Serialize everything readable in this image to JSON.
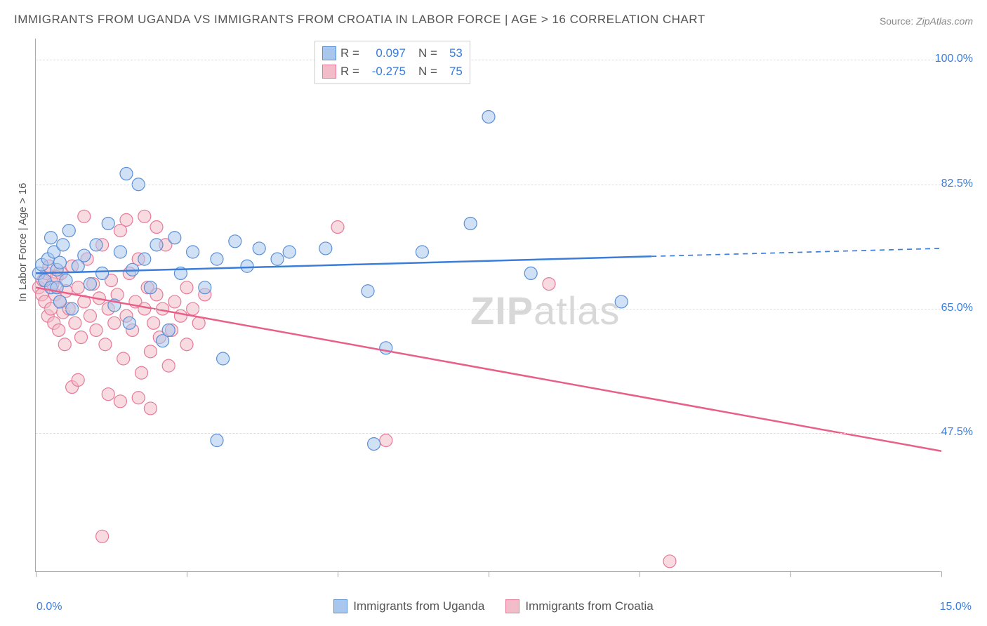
{
  "title": "IMMIGRANTS FROM UGANDA VS IMMIGRANTS FROM CROATIA IN LABOR FORCE | AGE > 16 CORRELATION CHART",
  "source_label": "Source:",
  "source_value": "ZipAtlas.com",
  "ylabel": "In Labor Force | Age > 16",
  "watermark": "ZIPatlas",
  "chart": {
    "type": "scatter-correlation",
    "background_color": "#ffffff",
    "grid_color": "#dddddd",
    "axis_color": "#aaaaaa",
    "tick_label_color": "#3b7dd8",
    "xlim": [
      0.0,
      15.0
    ],
    "ylim": [
      28.0,
      103.0
    ],
    "xtick_labels": {
      "left": "0.0%",
      "right": "15.0%"
    },
    "ytick_positions": [
      47.5,
      65.0,
      82.5,
      100.0
    ],
    "ytick_labels": [
      "47.5%",
      "65.0%",
      "82.5%",
      "100.0%"
    ],
    "xtick_positions": [
      0.0,
      2.5,
      5.0,
      7.5,
      10.0,
      12.5,
      15.0
    ],
    "marker_radius": 9,
    "marker_opacity": 0.55,
    "line_width": 2.5
  },
  "series": [
    {
      "name": "Immigrants from Uganda",
      "color_fill": "#a9c7ec",
      "color_stroke": "#5a8fd6",
      "line_color": "#3b7dd8",
      "R": "0.097",
      "N": "53",
      "regression": {
        "x1": 0.0,
        "y1": 70.0,
        "x2": 15.0,
        "y2": 73.5,
        "solid_until_x": 10.2
      },
      "points": [
        [
          0.05,
          70.0
        ],
        [
          0.1,
          71.2
        ],
        [
          0.15,
          69.0
        ],
        [
          0.2,
          72.0
        ],
        [
          0.25,
          68.0
        ],
        [
          0.3,
          73.0
        ],
        [
          0.25,
          75.0
        ],
        [
          0.35,
          70.5
        ],
        [
          0.4,
          66.0
        ],
        [
          0.45,
          74.0
        ],
        [
          0.5,
          69.0
        ],
        [
          0.55,
          76.0
        ],
        [
          0.6,
          65.0
        ],
        [
          0.7,
          71.0
        ],
        [
          0.8,
          72.5
        ],
        [
          0.9,
          68.5
        ],
        [
          1.0,
          74.0
        ],
        [
          1.1,
          70.0
        ],
        [
          1.2,
          77.0
        ],
        [
          1.3,
          65.5
        ],
        [
          1.4,
          73.0
        ],
        [
          1.5,
          84.0
        ],
        [
          1.55,
          63.0
        ],
        [
          1.6,
          70.5
        ],
        [
          1.7,
          82.5
        ],
        [
          1.8,
          72.0
        ],
        [
          1.9,
          68.0
        ],
        [
          2.0,
          74.0
        ],
        [
          2.1,
          60.5
        ],
        [
          2.2,
          62.0
        ],
        [
          2.3,
          75.0
        ],
        [
          2.4,
          70.0
        ],
        [
          2.6,
          73.0
        ],
        [
          2.8,
          68.0
        ],
        [
          3.0,
          72.0
        ],
        [
          3.1,
          58.0
        ],
        [
          3.3,
          74.5
        ],
        [
          3.5,
          71.0
        ],
        [
          3.7,
          73.5
        ],
        [
          3.0,
          46.5
        ],
        [
          4.0,
          72.0
        ],
        [
          4.2,
          73.0
        ],
        [
          4.8,
          73.5
        ],
        [
          5.5,
          67.5
        ],
        [
          5.6,
          46.0
        ],
        [
          5.8,
          59.5
        ],
        [
          6.4,
          73.0
        ],
        [
          7.5,
          92.0
        ],
        [
          8.2,
          70.0
        ],
        [
          9.7,
          66.0
        ],
        [
          7.2,
          77.0
        ],
        [
          0.4,
          71.5
        ],
        [
          0.35,
          68.0
        ]
      ]
    },
    {
      "name": "Immigrants from Croatia",
      "color_fill": "#f3bcc9",
      "color_stroke": "#e77a99",
      "line_color": "#e85f88",
      "R": "-0.275",
      "N": "75",
      "regression": {
        "x1": 0.0,
        "y1": 68.0,
        "x2": 15.0,
        "y2": 45.0,
        "solid_until_x": 15.0
      },
      "points": [
        [
          0.05,
          68.0
        ],
        [
          0.1,
          67.0
        ],
        [
          0.12,
          69.0
        ],
        [
          0.15,
          66.0
        ],
        [
          0.18,
          70.0
        ],
        [
          0.2,
          64.0
        ],
        [
          0.22,
          71.0
        ],
        [
          0.25,
          65.0
        ],
        [
          0.28,
          68.5
        ],
        [
          0.3,
          63.0
        ],
        [
          0.32,
          67.0
        ],
        [
          0.35,
          69.5
        ],
        [
          0.38,
          62.0
        ],
        [
          0.4,
          66.0
        ],
        [
          0.42,
          70.0
        ],
        [
          0.45,
          64.5
        ],
        [
          0.48,
          60.0
        ],
        [
          0.5,
          67.5
        ],
        [
          0.55,
          65.0
        ],
        [
          0.6,
          71.0
        ],
        [
          0.65,
          63.0
        ],
        [
          0.7,
          68.0
        ],
        [
          0.75,
          61.0
        ],
        [
          0.8,
          66.0
        ],
        [
          0.85,
          72.0
        ],
        [
          0.9,
          64.0
        ],
        [
          0.95,
          68.5
        ],
        [
          1.0,
          62.0
        ],
        [
          1.05,
          66.5
        ],
        [
          1.1,
          74.0
        ],
        [
          1.15,
          60.0
        ],
        [
          1.2,
          65.0
        ],
        [
          1.25,
          69.0
        ],
        [
          1.3,
          63.0
        ],
        [
          1.35,
          67.0
        ],
        [
          1.4,
          76.0
        ],
        [
          1.45,
          58.0
        ],
        [
          1.5,
          64.0
        ],
        [
          1.55,
          70.0
        ],
        [
          1.6,
          62.0
        ],
        [
          1.65,
          66.0
        ],
        [
          1.7,
          72.0
        ],
        [
          1.75,
          56.0
        ],
        [
          1.8,
          65.0
        ],
        [
          1.85,
          68.0
        ],
        [
          1.9,
          59.0
        ],
        [
          1.95,
          63.0
        ],
        [
          2.0,
          67.0
        ],
        [
          2.05,
          61.0
        ],
        [
          2.1,
          65.0
        ],
        [
          2.15,
          74.0
        ],
        [
          2.2,
          57.0
        ],
        [
          2.25,
          62.0
        ],
        [
          2.3,
          66.0
        ],
        [
          2.4,
          64.0
        ],
        [
          2.5,
          60.0
        ],
        [
          2.6,
          65.0
        ],
        [
          2.7,
          63.0
        ],
        [
          2.8,
          67.0
        ],
        [
          0.6,
          54.0
        ],
        [
          0.7,
          55.0
        ],
        [
          1.2,
          53.0
        ],
        [
          1.4,
          52.0
        ],
        [
          0.8,
          78.0
        ],
        [
          1.5,
          77.5
        ],
        [
          1.8,
          78.0
        ],
        [
          2.0,
          76.5
        ],
        [
          1.7,
          52.5
        ],
        [
          1.9,
          51.0
        ],
        [
          1.1,
          33.0
        ],
        [
          5.0,
          76.5
        ],
        [
          5.8,
          46.5
        ],
        [
          8.5,
          68.5
        ],
        [
          10.5,
          29.5
        ],
        [
          2.5,
          68.0
        ]
      ]
    }
  ],
  "legend_top_labels": {
    "R": "R =",
    "N": "N ="
  },
  "legend_bottom": [
    {
      "label": "Immigrants from Uganda",
      "fill": "#a9c7ec",
      "stroke": "#5a8fd6"
    },
    {
      "label": "Immigrants from Croatia",
      "fill": "#f3bcc9",
      "stroke": "#e77a99"
    }
  ]
}
